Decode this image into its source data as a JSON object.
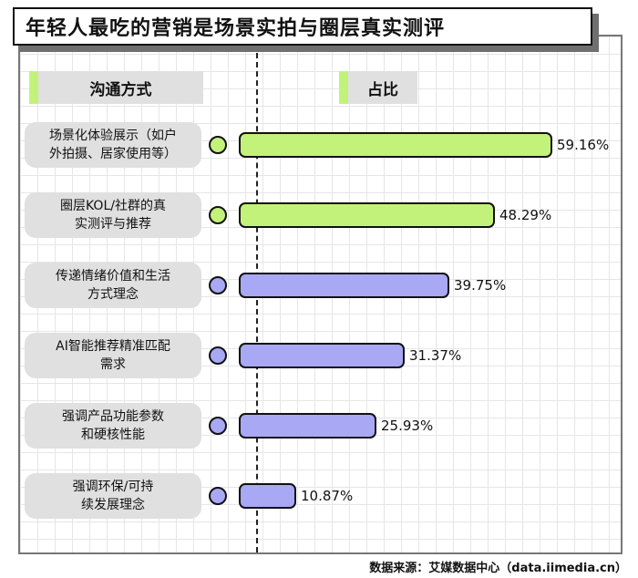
{
  "title": "年轻人最吃的营销是场景实拍与圈层真实测评",
  "headers": {
    "method": "沟通方式",
    "share": "占比"
  },
  "source": "数据来源：艾媒数据中心（data.iimedia.cn）",
  "colors": {
    "green": "#c3f27a",
    "purple": "#a9a8f4"
  },
  "chart_data": {
    "type": "bar",
    "orientation": "horizontal",
    "categories": [
      "场景化体验展示（如户外拍摄、居家使用等）",
      "圈层KOL/社群的真实测评与推荐",
      "传递情绪价值和生活方式理念",
      "AI智能推荐精准匹配需求",
      "强调产品功能参数和硬核性能",
      "强调环保/可持续发展理念"
    ],
    "category_lines": [
      [
        "场景化体验展示（如户",
        "外拍摄、居家使用等）"
      ],
      [
        "圈层KOL/社群的真",
        "实测评与推荐"
      ],
      [
        "传递情绪价值和生活",
        "方式理念"
      ],
      [
        "AI智能推荐精准匹配",
        "需求"
      ],
      [
        "强调产品功能参数",
        "和硬核性能"
      ],
      [
        "强调环保/可持",
        "续发展理念"
      ]
    ],
    "values": [
      59.16,
      48.29,
      39.75,
      31.37,
      25.93,
      10.87
    ],
    "value_labels": [
      "59.16%",
      "48.29%",
      "39.75%",
      "31.37%",
      "25.93%",
      "10.87%"
    ],
    "highlight": [
      true,
      true,
      false,
      false,
      false,
      false
    ],
    "unit": "%",
    "xlim": [
      0,
      59.16
    ]
  }
}
